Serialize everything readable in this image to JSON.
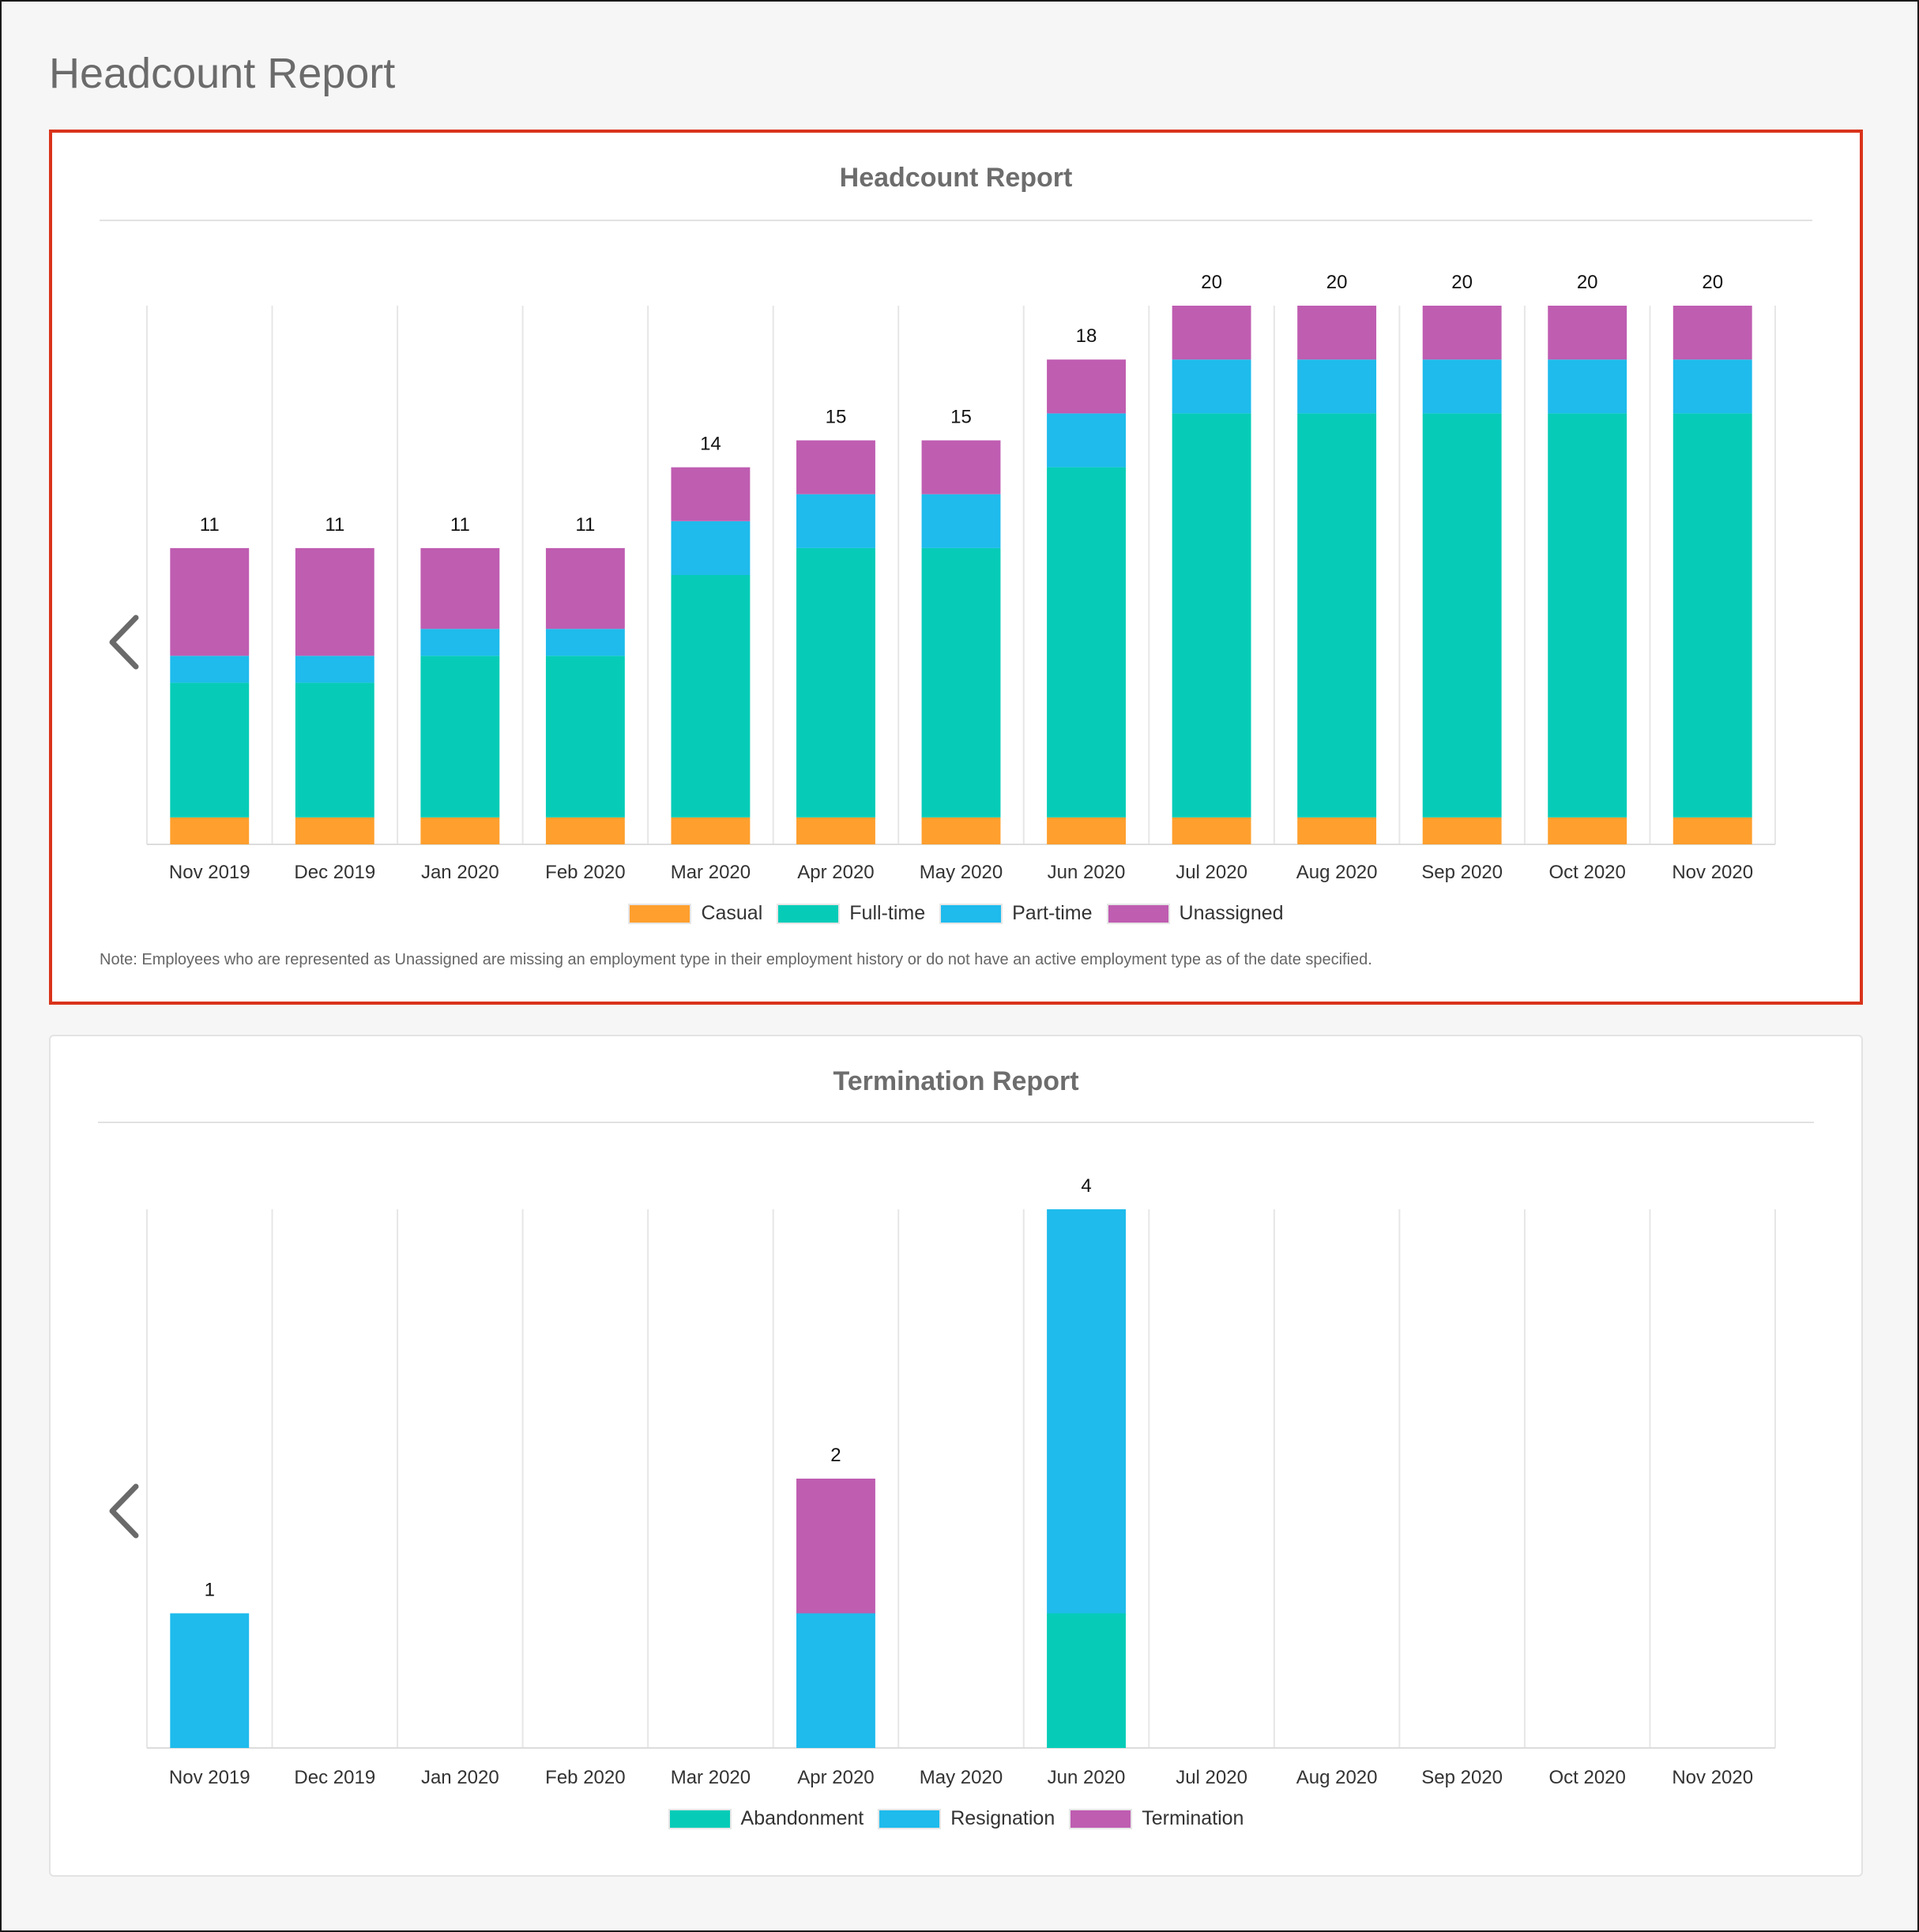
{
  "page": {
    "title": "Headcount Report"
  },
  "headcount": {
    "title": "Headcount Report",
    "note": "Note: Employees who are represented as Unassigned are missing an employment type in their employment history or do not have an active employment type as of the date specified."
  },
  "termination": {
    "title": "Termination Report"
  },
  "icons": {
    "prev": "chevron-left-icon"
  },
  "chart_data": [
    {
      "type": "bar",
      "stacked": true,
      "title": "Headcount Report",
      "categories": [
        "Nov 2019",
        "Dec 2019",
        "Jan 2020",
        "Feb 2020",
        "Mar 2020",
        "Apr 2020",
        "May 2020",
        "Jun 2020",
        "Jul 2020",
        "Aug 2020",
        "Sep 2020",
        "Oct 2020",
        "Nov 2020"
      ],
      "totals": [
        11,
        11,
        11,
        11,
        14,
        15,
        15,
        18,
        20,
        20,
        20,
        20,
        20
      ],
      "series": [
        {
          "name": "Casual",
          "color": "#ff9f2e",
          "values": [
            1,
            1,
            1,
            1,
            1,
            1,
            1,
            1,
            1,
            1,
            1,
            1,
            1
          ]
        },
        {
          "name": "Full-time",
          "color": "#06ccb7",
          "values": [
            5,
            5,
            6,
            6,
            9,
            10,
            10,
            13,
            15,
            15,
            15,
            15,
            15
          ]
        },
        {
          "name": "Part-time",
          "color": "#1ebbec",
          "values": [
            1,
            1,
            1,
            1,
            2,
            2,
            2,
            2,
            2,
            2,
            2,
            2,
            2
          ]
        },
        {
          "name": "Unassigned",
          "color": "#bf5db1",
          "values": [
            4,
            4,
            3,
            3,
            2,
            2,
            2,
            2,
            2,
            2,
            2,
            2,
            2
          ]
        }
      ],
      "ylim": [
        0,
        20
      ],
      "grid": true,
      "legend_position": "bottom"
    },
    {
      "type": "bar",
      "stacked": true,
      "title": "Termination Report",
      "categories": [
        "Nov 2019",
        "Dec 2019",
        "Jan 2020",
        "Feb 2020",
        "Mar 2020",
        "Apr 2020",
        "May 2020",
        "Jun 2020",
        "Jul 2020",
        "Aug 2020",
        "Sep 2020",
        "Oct 2020",
        "Nov 2020"
      ],
      "totals": [
        1,
        null,
        null,
        null,
        null,
        2,
        null,
        4,
        null,
        null,
        null,
        null,
        null
      ],
      "series": [
        {
          "name": "Abandonment",
          "color": "#06ccb7",
          "values": [
            0,
            0,
            0,
            0,
            0,
            0,
            0,
            1,
            0,
            0,
            0,
            0,
            0
          ]
        },
        {
          "name": "Resignation",
          "color": "#1ebbec",
          "values": [
            1,
            0,
            0,
            0,
            0,
            1,
            0,
            3,
            0,
            0,
            0,
            0,
            0
          ]
        },
        {
          "name": "Termination",
          "color": "#bf5db1",
          "values": [
            0,
            0,
            0,
            0,
            0,
            1,
            0,
            0,
            0,
            0,
            0,
            0,
            0
          ]
        }
      ],
      "ylim": [
        0,
        4
      ],
      "grid": true,
      "legend_position": "bottom"
    }
  ]
}
